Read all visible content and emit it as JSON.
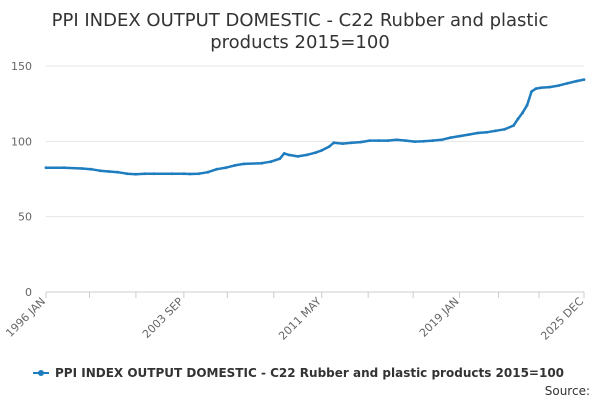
{
  "chart_data": {
    "type": "line",
    "title_line1": "PPI INDEX OUTPUT DOMESTIC - C22 Rubber and plastic",
    "title_line2": "products 2015=100",
    "xlabel": "",
    "ylabel": "",
    "ylim": [
      0,
      150
    ],
    "y_ticks": [
      0,
      50,
      100,
      150
    ],
    "x_range": [
      "1996 JAN",
      "2025 DEC"
    ],
    "x_ticks": [
      "1996 JAN",
      "2003 SEP",
      "2011 MAY",
      "2019 JAN",
      "2025 DEC"
    ],
    "grid": "horizontal",
    "legend_position": "bottom",
    "source_label": "Source:",
    "series": [
      {
        "name": "PPI INDEX OUTPUT DOMESTIC - C22 Rubber and plastic products 2015=100",
        "color": "#1f7dbf",
        "points": [
          [
            "1996 JAN",
            82.5
          ],
          [
            "1997 JAN",
            82.5
          ],
          [
            "1998 JAN",
            82.0
          ],
          [
            "1998 JUL",
            81.5
          ],
          [
            "1999 JAN",
            80.5
          ],
          [
            "1999 JUL",
            80.0
          ],
          [
            "2000 JAN",
            79.5
          ],
          [
            "2000 JUL",
            78.5
          ],
          [
            "2001 JAN",
            78.2
          ],
          [
            "2001 JUL",
            78.5
          ],
          [
            "2002 JAN",
            78.5
          ],
          [
            "2003 JAN",
            78.5
          ],
          [
            "2003 SEP",
            78.5
          ],
          [
            "2004 JAN",
            78.3
          ],
          [
            "2004 JUL",
            78.5
          ],
          [
            "2005 JAN",
            79.5
          ],
          [
            "2005 JUL",
            81.5
          ],
          [
            "2006 JAN",
            82.5
          ],
          [
            "2006 JUL",
            84.0
          ],
          [
            "2007 JAN",
            85.0
          ],
          [
            "2008 JAN",
            85.5
          ],
          [
            "2008 JUL",
            86.5
          ],
          [
            "2009 JAN",
            88.5
          ],
          [
            "2009 APR",
            92.0
          ],
          [
            "2009 JUL",
            91.0
          ],
          [
            "2010 JAN",
            90.0
          ],
          [
            "2010 JUL",
            91.0
          ],
          [
            "2011 JAN",
            92.5
          ],
          [
            "2011 MAY",
            94.0
          ],
          [
            "2011 OCT",
            96.5
          ],
          [
            "2012 JAN",
            99.0
          ],
          [
            "2012 JUL",
            98.5
          ],
          [
            "2013 JAN",
            99.0
          ],
          [
            "2013 JUL",
            99.5
          ],
          [
            "2014 JAN",
            100.5
          ],
          [
            "2014 JUL",
            100.5
          ],
          [
            "2015 JAN",
            100.5
          ],
          [
            "2015 JUL",
            101.0
          ],
          [
            "2016 JAN",
            100.5
          ],
          [
            "2016 JUL",
            99.8
          ],
          [
            "2017 JAN",
            100.0
          ],
          [
            "2017 JUL",
            100.5
          ],
          [
            "2018 JAN",
            101.0
          ],
          [
            "2018 JUL",
            102.5
          ],
          [
            "2019 JAN",
            103.5
          ],
          [
            "2019 JUL",
            104.5
          ],
          [
            "2020 JAN",
            105.5
          ],
          [
            "2020 JUL",
            106.0
          ],
          [
            "2021 JAN",
            107.0
          ],
          [
            "2021 JUL",
            108.0
          ],
          [
            "2022 JAN",
            110.5
          ],
          [
            "2022 APR",
            115.0
          ],
          [
            "2022 JUL",
            119.0
          ],
          [
            "2022 OCT",
            124.0
          ],
          [
            "2023 JAN",
            133.0
          ],
          [
            "2023 APR",
            135.0
          ],
          [
            "2023 JUL",
            135.5
          ],
          [
            "2024 JAN",
            136.0
          ],
          [
            "2024 JUL",
            137.0
          ],
          [
            "2025 JAN",
            138.5
          ],
          [
            "2025 JUL",
            140.0
          ],
          [
            "2025 DEC",
            141.0
          ]
        ]
      }
    ]
  }
}
